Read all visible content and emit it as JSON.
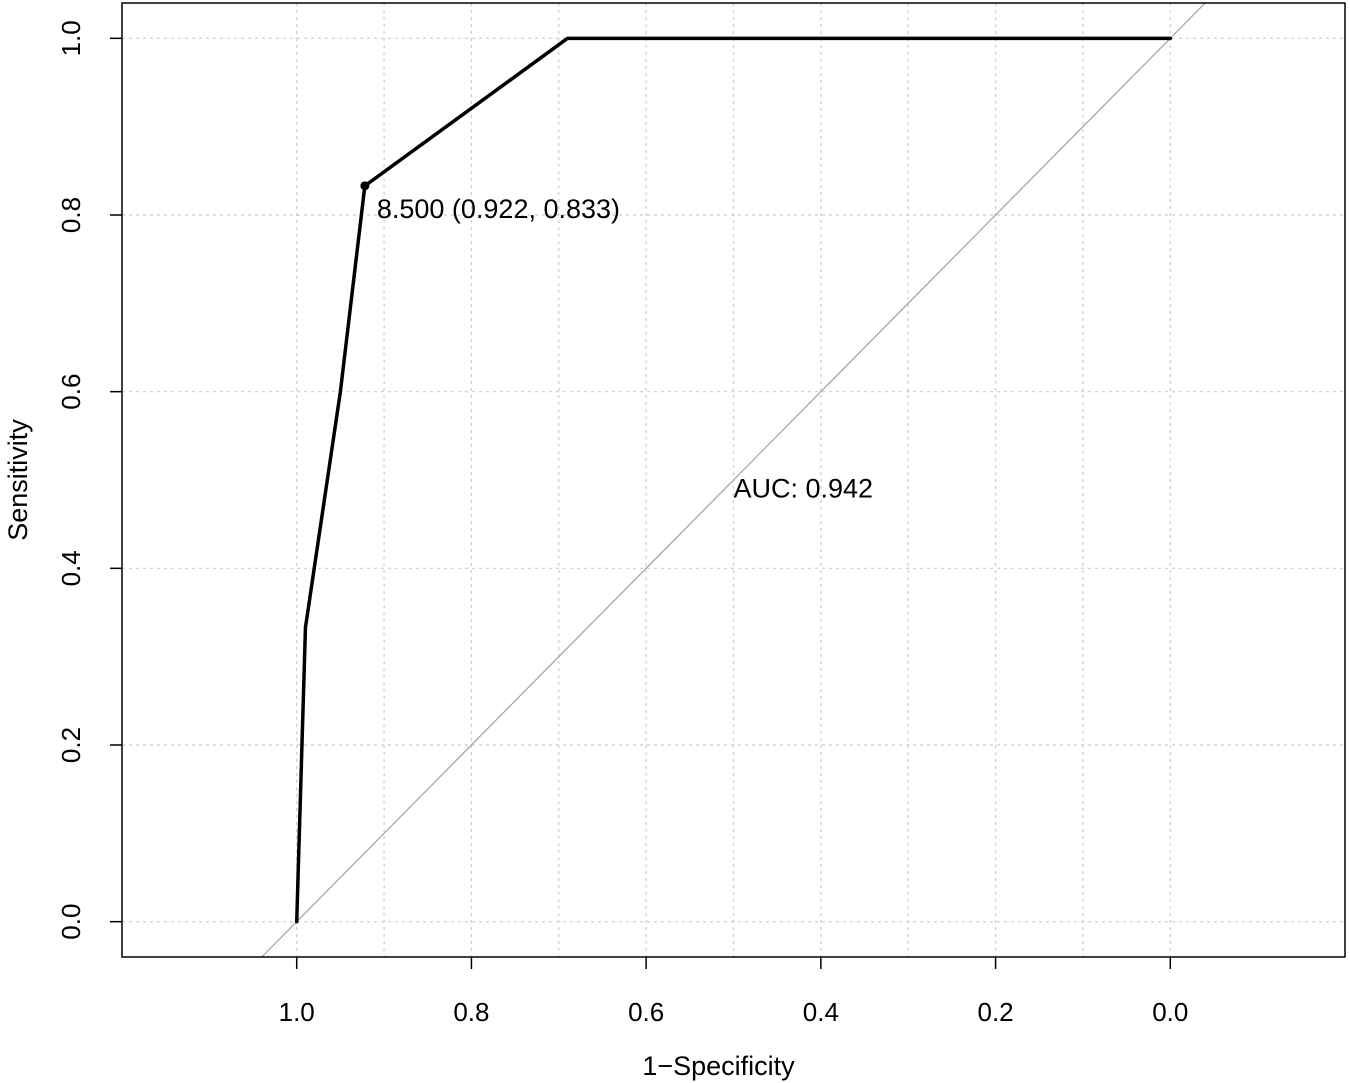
{
  "chart_data": {
    "type": "line",
    "xlabel": "1−Specificity",
    "ylabel": "Sensitivity",
    "x_axis_reversed": true,
    "xlim": [
      1.2,
      -0.2
    ],
    "ylim": [
      -0.04,
      1.04
    ],
    "x_ticks": [
      "1.0",
      "0.8",
      "0.6",
      "0.4",
      "0.2",
      "0.0"
    ],
    "x_tick_values": [
      1.0,
      0.8,
      0.6,
      0.4,
      0.2,
      0.0
    ],
    "y_ticks": [
      "0.0",
      "0.2",
      "0.4",
      "0.6",
      "0.8",
      "1.0"
    ],
    "y_tick_values": [
      0.0,
      0.2,
      0.4,
      0.6,
      0.8,
      1.0
    ],
    "grid": true,
    "grid_x_values": [
      1.0,
      0.9,
      0.8,
      0.7,
      0.6,
      0.5,
      0.4,
      0.3,
      0.2,
      0.1,
      0.0
    ],
    "grid_y_values": [
      0.0,
      0.2,
      0.4,
      0.6,
      0.8,
      1.0
    ],
    "series": [
      {
        "x": [
          1.0,
          0.99,
          0.95,
          0.922,
          0.69,
          0.0
        ],
        "y": [
          0.0,
          0.333,
          0.6,
          0.833,
          1.0,
          1.0
        ]
      }
    ],
    "reference_line": {
      "x": [
        1.04,
        -0.04
      ],
      "y": [
        -0.04,
        1.04
      ]
    },
    "highlight_point": {
      "x": 0.922,
      "y": 0.833,
      "label": "8.500 (0.922, 0.833)"
    },
    "annotations": [
      {
        "text": "AUC: 0.942",
        "x": 0.5,
        "y": 0.48
      }
    ],
    "colors": {
      "curve": "#000000",
      "reference": "#a0a0a0",
      "grid": "#cccccc"
    }
  }
}
